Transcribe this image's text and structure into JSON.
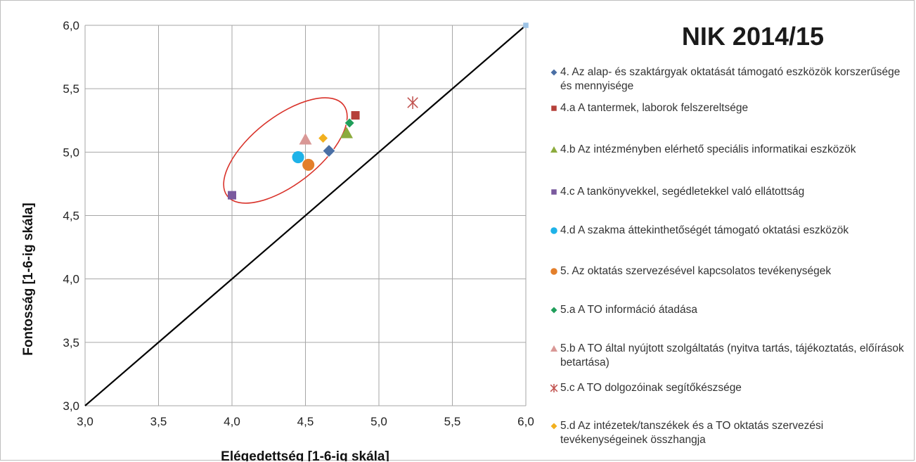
{
  "chart_data": {
    "type": "scatter",
    "title": "NIK 2014/15",
    "xlabel": "Elégedettség [1-6-ig skála]",
    "ylabel": "Fontosság [1-6-ig skála]",
    "xlim": [
      3.0,
      6.0
    ],
    "ylim": [
      3.0,
      6.0
    ],
    "xticks": [
      "3,0",
      "3,5",
      "4,0",
      "4,5",
      "5,0",
      "5,5",
      "6,0"
    ],
    "yticks": [
      "3,0",
      "3,5",
      "4,0",
      "4,5",
      "5,0",
      "5,5",
      "6,0"
    ],
    "grid": true,
    "reference_line": {
      "from": [
        3.0,
        3.0
      ],
      "to": [
        6.0,
        6.0
      ],
      "color": "#000000"
    },
    "highlight_ellipse_color": "#d9332b",
    "legend_position": "right",
    "series": [
      {
        "name": "4. Az alap- és szaktárgyak oktatását támogató eszközök korszerűsége és mennyisége",
        "marker": "diamond",
        "color": "#4a6fa5",
        "x": 4.66,
        "y": 5.01
      },
      {
        "name": "4.a  A tantermek, laborok felszereltsége",
        "marker": "square",
        "color": "#b5403a",
        "x": 4.84,
        "y": 5.29
      },
      {
        "name": "4.b  Az intézményben elérhető speciális informatikai eszközök",
        "marker": "triangle",
        "color": "#8cab3c",
        "x": 4.78,
        "y": 5.15
      },
      {
        "name": "4.c  A tankönyvekkel, segédletekkel való ellátottság",
        "marker": "square",
        "color": "#7a5a9e",
        "x": 4.0,
        "y": 4.66
      },
      {
        "name": "4.d  A szakma áttekinthetőségét támogató oktatási eszközök",
        "marker": "circle",
        "color": "#1eb2e8",
        "x": 4.45,
        "y": 4.96
      },
      {
        "name": "5. Az oktatás szervezésével kapcsolatos tevékenységek",
        "marker": "circle",
        "color": "#e37f2b",
        "x": 4.52,
        "y": 4.9
      },
      {
        "name": "5.a  A TO információ átadása",
        "marker": "diamond",
        "color": "#1f9e5a",
        "x": 4.8,
        "y": 5.23
      },
      {
        "name": "5.b  A TO által nyújtott szolgáltatás (nyitva tartás, tájékoztatás, előírások betartása)",
        "marker": "triangle",
        "color": "#d99896",
        "x": 4.5,
        "y": 5.1
      },
      {
        "name": "5.c  A TO dolgozóinak segítőkészsége",
        "marker": "asterisk",
        "color": "#c0504d",
        "x": 5.23,
        "y": 5.39
      },
      {
        "name": "5.d  Az intézetek/tanszékek és a TO oktatás szervezési tevékenységeinek összhangja",
        "marker": "diamond",
        "color": "#f2b01e",
        "x": 4.62,
        "y": 5.11
      }
    ],
    "extra_point": {
      "marker": "square",
      "color": "#9dc3e6",
      "x": 6.0,
      "y": 6.0
    }
  },
  "legend_labels": [
    "4. Az alap- és szaktárgyak oktatását támogató eszközök korszerűsége és mennyisége",
    "4.a  A tantermek, laborok felszereltsége",
    "4.b  Az intézményben elérhető speciális informatikai eszközök",
    "4.c  A tankönyvekkel, segédletekkel való ellátottság",
    "4.d  A szakma áttekinthetőségét támogató oktatási eszközök",
    "5. Az oktatás szervezésével kapcsolatos tevékenységek",
    "5.a  A TO információ átadása",
    "5.b  A TO által nyújtott szolgáltatás (nyitva tartás, tájékoztatás, előírások betartása)",
    "5.c  A TO dolgozóinak segítőkészsége",
    "5.d  Az intézetek/tanszékek és a TO oktatás szervezési tevékenységeinek összhangja"
  ]
}
